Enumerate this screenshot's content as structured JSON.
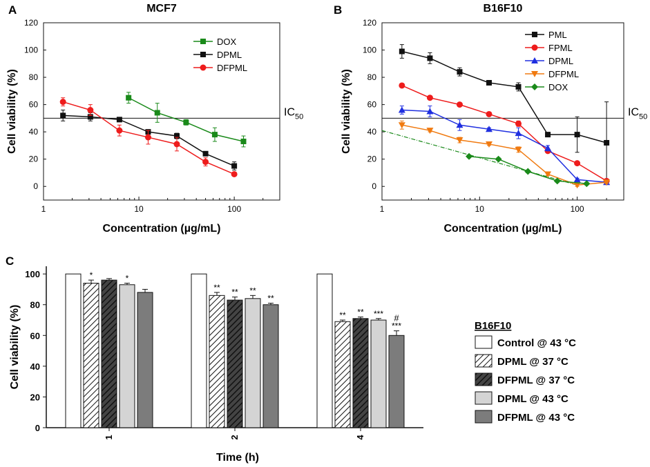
{
  "chart_data": [
    {
      "panel": "A",
      "type": "line",
      "title": "MCF7",
      "xlabel": "Concentration (µg/mL)",
      "ylabel": "Cell viability (%)",
      "xscale": "log",
      "xlim": [
        1,
        300
      ],
      "ylim": [
        -10,
        120
      ],
      "yticks": [
        0,
        20,
        40,
        60,
        80,
        100,
        120
      ],
      "xticks": [
        {
          "value": 1,
          "label": "1"
        },
        {
          "value": 10,
          "label": "10"
        },
        {
          "value": 100,
          "label": "100"
        }
      ],
      "reference_line": {
        "value": 50,
        "label": "IC",
        "label_sub": "50"
      },
      "legend_position": "top-right",
      "series": [
        {
          "name": "DOX",
          "color": "#1a8a1a",
          "marker": "square",
          "x": [
            7.8,
            15.6,
            31.25,
            62.5,
            125
          ],
          "y": [
            65,
            54,
            47,
            38,
            33
          ],
          "err": [
            4,
            7,
            2,
            5,
            4
          ]
        },
        {
          "name": "DPML",
          "color": "#111111",
          "marker": "square",
          "x": [
            1.6,
            3.1,
            6.25,
            12.5,
            25,
            50,
            100
          ],
          "y": [
            52,
            51,
            49,
            40,
            37,
            24,
            15
          ],
          "err": [
            4,
            3,
            1,
            1,
            2,
            1,
            3
          ]
        },
        {
          "name": "DFPML",
          "color": "#ee1c1c",
          "marker": "circle",
          "x": [
            1.6,
            3.1,
            6.25,
            12.5,
            25,
            50,
            100
          ],
          "y": [
            62,
            56,
            41,
            36,
            31,
            18,
            9
          ],
          "err": [
            3,
            4,
            4,
            5,
            5,
            3,
            1
          ]
        }
      ]
    },
    {
      "panel": "B",
      "type": "line",
      "title": "B16F10",
      "xlabel": "Concentration (µg/mL)",
      "ylabel": "Cell viability (%)",
      "xscale": "log",
      "xlim": [
        1,
        300
      ],
      "ylim": [
        -10,
        120
      ],
      "yticks": [
        0,
        20,
        40,
        60,
        80,
        100,
        120
      ],
      "xticks": [
        {
          "value": 1,
          "label": "1"
        },
        {
          "value": 10,
          "label": "10"
        },
        {
          "value": 100,
          "label": "100"
        }
      ],
      "reference_line": {
        "value": 50,
        "label": "IC",
        "label_sub": "50"
      },
      "legend_position": "top-right",
      "series": [
        {
          "name": "PML",
          "color": "#111111",
          "marker": "square",
          "x": [
            1.6,
            3.1,
            6.25,
            12.5,
            25,
            50,
            100,
            200
          ],
          "y": [
            99,
            94,
            84,
            76,
            73,
            38,
            38,
            32
          ],
          "err": [
            5,
            4,
            3,
            1,
            3,
            1,
            13,
            30
          ]
        },
        {
          "name": "FPML",
          "color": "#ee1c1c",
          "marker": "circle",
          "x": [
            1.6,
            3.1,
            6.25,
            12.5,
            25,
            50,
            100,
            200
          ],
          "y": [
            74,
            65,
            60,
            53,
            46,
            26,
            17,
            4
          ],
          "err": [
            1,
            1,
            1,
            1,
            2,
            1,
            1,
            1
          ]
        },
        {
          "name": "DPML",
          "color": "#1f2fe0",
          "marker": "triangle-up",
          "x": [
            1.6,
            3.1,
            6.25,
            12.5,
            25,
            50,
            100,
            200
          ],
          "y": [
            56,
            55,
            45,
            42,
            39,
            28,
            5,
            3
          ],
          "err": [
            3,
            4,
            4,
            1,
            4,
            2,
            1,
            1
          ]
        },
        {
          "name": "DFPML",
          "color": "#f07a10",
          "marker": "triangle-down",
          "x": [
            1.6,
            3.1,
            6.25,
            12.5,
            25,
            50,
            100,
            200
          ],
          "y": [
            45,
            41,
            34,
            31,
            27,
            9,
            1,
            3
          ],
          "err": [
            3,
            1,
            2,
            1,
            2,
            1,
            1,
            1
          ]
        },
        {
          "name": "DOX",
          "color": "#1a8a1a",
          "marker": "diamond",
          "x": [
            7.8,
            15.6,
            31.25,
            62.5,
            125
          ],
          "y": [
            22,
            20,
            11,
            4,
            2
          ],
          "err": [
            1,
            1,
            1,
            1,
            1
          ]
        }
      ],
      "fit_line": {
        "color": "#1a8a1a",
        "x": [
          1,
          100
        ],
        "y": [
          41,
          1
        ]
      }
    },
    {
      "panel": "C",
      "type": "bar",
      "xlabel": "Time (h)",
      "ylabel": "Cell viability (%)",
      "ylim": [
        0,
        105
      ],
      "yticks": [
        0,
        20,
        40,
        60,
        80,
        100
      ],
      "categories": [
        "1",
        "2",
        "4"
      ],
      "legend_title": "B16F10",
      "series": [
        {
          "name": "Control @ 43 °C",
          "fill": "#ffffff",
          "pattern": "none",
          "values": [
            100,
            100,
            100
          ],
          "err": [
            0,
            0,
            0
          ],
          "sig": [
            "",
            "",
            ""
          ]
        },
        {
          "name": "DPML @ 37 °C",
          "fill": "#ffffff",
          "pattern": "hatch-light",
          "values": [
            94,
            86,
            69
          ],
          "err": [
            2,
            2,
            1
          ],
          "sig": [
            "*",
            "**",
            "**"
          ]
        },
        {
          "name": "DFPML @ 37 °C",
          "fill": "#555555",
          "pattern": "hatch-dark",
          "values": [
            96,
            83,
            71
          ],
          "err": [
            1,
            2,
            1
          ],
          "sig": [
            "",
            "**",
            "**"
          ]
        },
        {
          "name": "DPML @ 43 °C",
          "fill": "#d4d4d4",
          "pattern": "none",
          "values": [
            93,
            84,
            70
          ],
          "err": [
            1,
            2,
            1
          ],
          "sig": [
            "*",
            "**",
            "***"
          ]
        },
        {
          "name": "DFPML @ 43 °C",
          "fill": "#7c7c7c",
          "pattern": "none",
          "values": [
            88,
            80,
            60
          ],
          "err": [
            2,
            1,
            3
          ],
          "sig": [
            "",
            "**",
            "***"
          ],
          "sig2": [
            "",
            "",
            "#"
          ]
        }
      ]
    }
  ]
}
